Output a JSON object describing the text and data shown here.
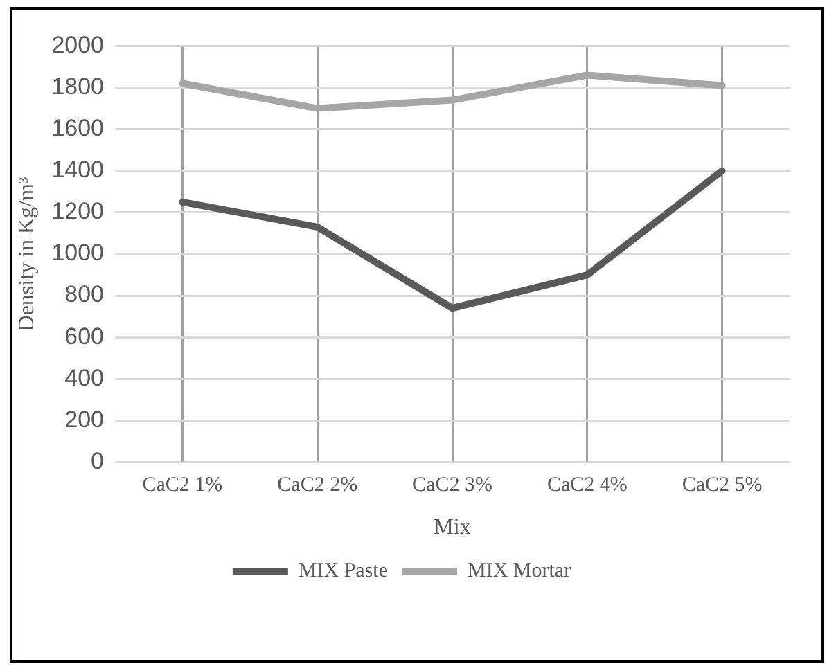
{
  "chart_data": {
    "type": "line",
    "xlabel": "Mix",
    "ylabel": "Density in Kg/m³",
    "categories": [
      "CaC2 1%",
      "CaC2 2%",
      "CaC2 3%",
      "CaC2 4%",
      "CaC2 5%"
    ],
    "series": [
      {
        "name": "MIX Paste",
        "color": "#595959",
        "values": [
          1250,
          1130,
          740,
          900,
          1400
        ]
      },
      {
        "name": "MIX Mortar",
        "color": "#a6a6a6",
        "values": [
          1820,
          1700,
          1740,
          1860,
          1810
        ]
      }
    ],
    "ylim": [
      0,
      2000
    ],
    "yticks": [
      0,
      200,
      400,
      600,
      800,
      1000,
      1200,
      1400,
      1600,
      1800,
      2000
    ],
    "grid": true,
    "legend": "bottom",
    "marker": "none",
    "line_style": "solid"
  }
}
